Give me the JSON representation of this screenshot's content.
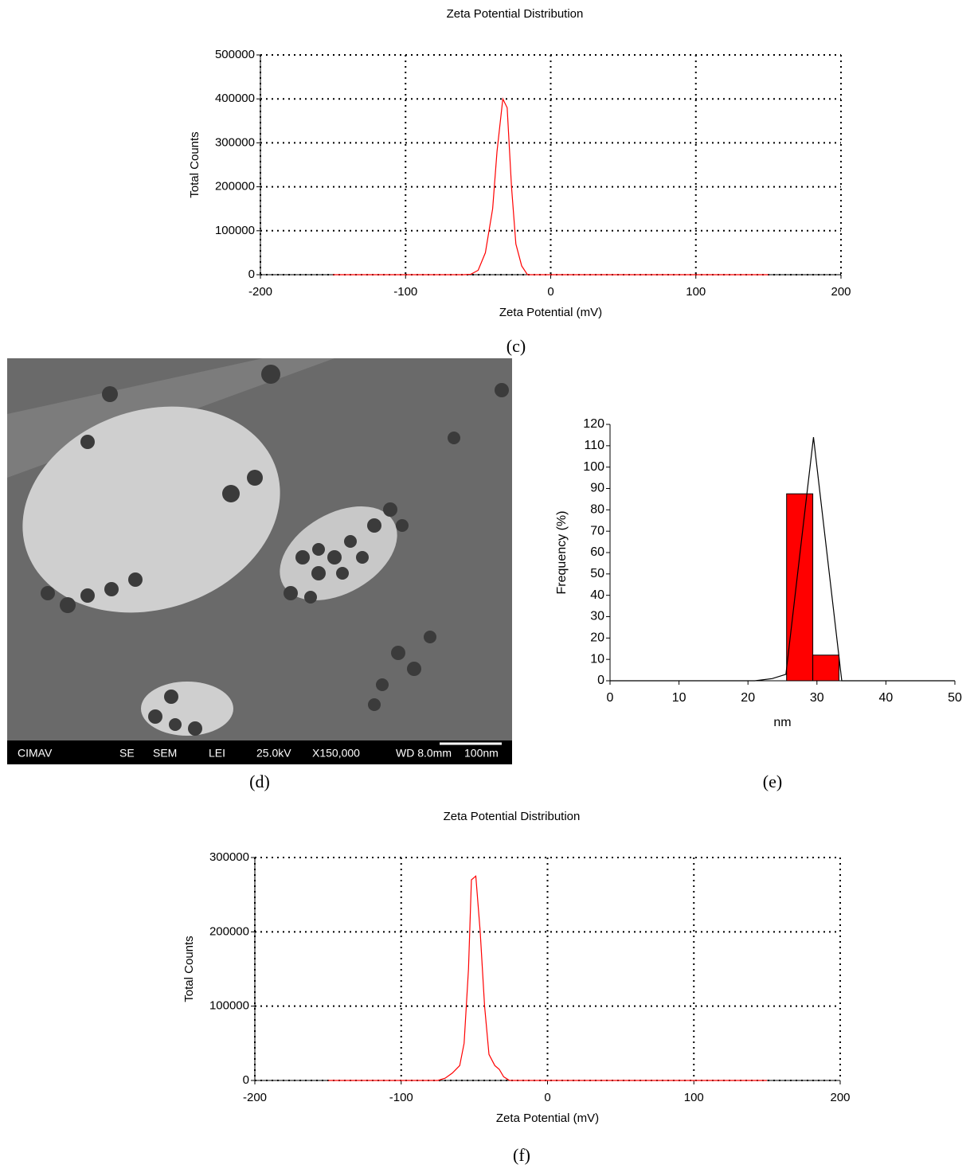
{
  "chart_data": [
    {
      "type": "line",
      "title": "Zeta Potential Distribution",
      "xlabel": "Zeta Potential (mV)",
      "ylabel": "Total Counts",
      "caption": "(c)",
      "x": [
        -150,
        -60,
        -55,
        -50,
        -45,
        -40,
        -37,
        -33,
        -30,
        -27,
        -24,
        -20,
        -16,
        150
      ],
      "series": [
        {
          "color": "#ff0000",
          "values": [
            0,
            0,
            1000,
            10000,
            50000,
            150000,
            280000,
            400000,
            380000,
            200000,
            70000,
            20000,
            0,
            0
          ]
        }
      ],
      "xlim": [
        -200,
        200
      ],
      "xticks": [
        -200,
        -100,
        0,
        100,
        200
      ],
      "ylim": [
        0,
        500000
      ],
      "yticks": [
        0,
        100000,
        200000,
        300000,
        400000,
        500000
      ],
      "grid": true
    },
    {
      "type": "histogram",
      "xlabel": "nm",
      "ylabel": "Frequency (%)",
      "caption": "(e)",
      "bins": [
        25.6,
        29.4,
        33.2
      ],
      "values": [
        87.5,
        12
      ],
      "color": "#ff0000",
      "line": {
        "x": [
          0,
          21,
          23.5,
          25.5,
          29.5,
          33.6,
          50
        ],
        "values": [
          0,
          0,
          1,
          3,
          114,
          0,
          0
        ],
        "color": "#000000"
      },
      "xlim": [
        0,
        50
      ],
      "xticks": [
        0,
        10,
        20,
        30,
        40,
        50
      ],
      "ylim": [
        0,
        120
      ],
      "yticks": [
        0,
        10,
        20,
        30,
        40,
        50,
        60,
        70,
        80,
        90,
        100,
        110,
        120
      ],
      "grid": false
    },
    {
      "type": "line",
      "title": "Zeta Potential Distribution",
      "xlabel": "Zeta Potential (mV)",
      "ylabel": "Total Counts",
      "caption": "(f)",
      "x": [
        -150,
        -75,
        -70,
        -65,
        -60,
        -57,
        -54,
        -52,
        -49,
        -46,
        -43,
        -40,
        -36,
        -33,
        -30,
        -26,
        150
      ],
      "series": [
        {
          "color": "#ff0000",
          "values": [
            0,
            0,
            3000,
            10000,
            20000,
            50000,
            150000,
            270000,
            275000,
            200000,
            100000,
            35000,
            20000,
            15000,
            5000,
            0,
            0
          ]
        }
      ],
      "xlim": [
        -200,
        200
      ],
      "xticks": [
        -200,
        -100,
        0,
        100,
        200
      ],
      "ylim": [
        0,
        300000
      ],
      "yticks": [
        0,
        100000,
        200000,
        300000
      ],
      "grid": true
    }
  ],
  "sem_image": {
    "caption": "(d)",
    "footer": [
      "CIMAV",
      "SE",
      "SEM",
      "LEI",
      "25.0kV",
      "X150,000",
      "WD 8.0mm",
      "100nm"
    ]
  }
}
